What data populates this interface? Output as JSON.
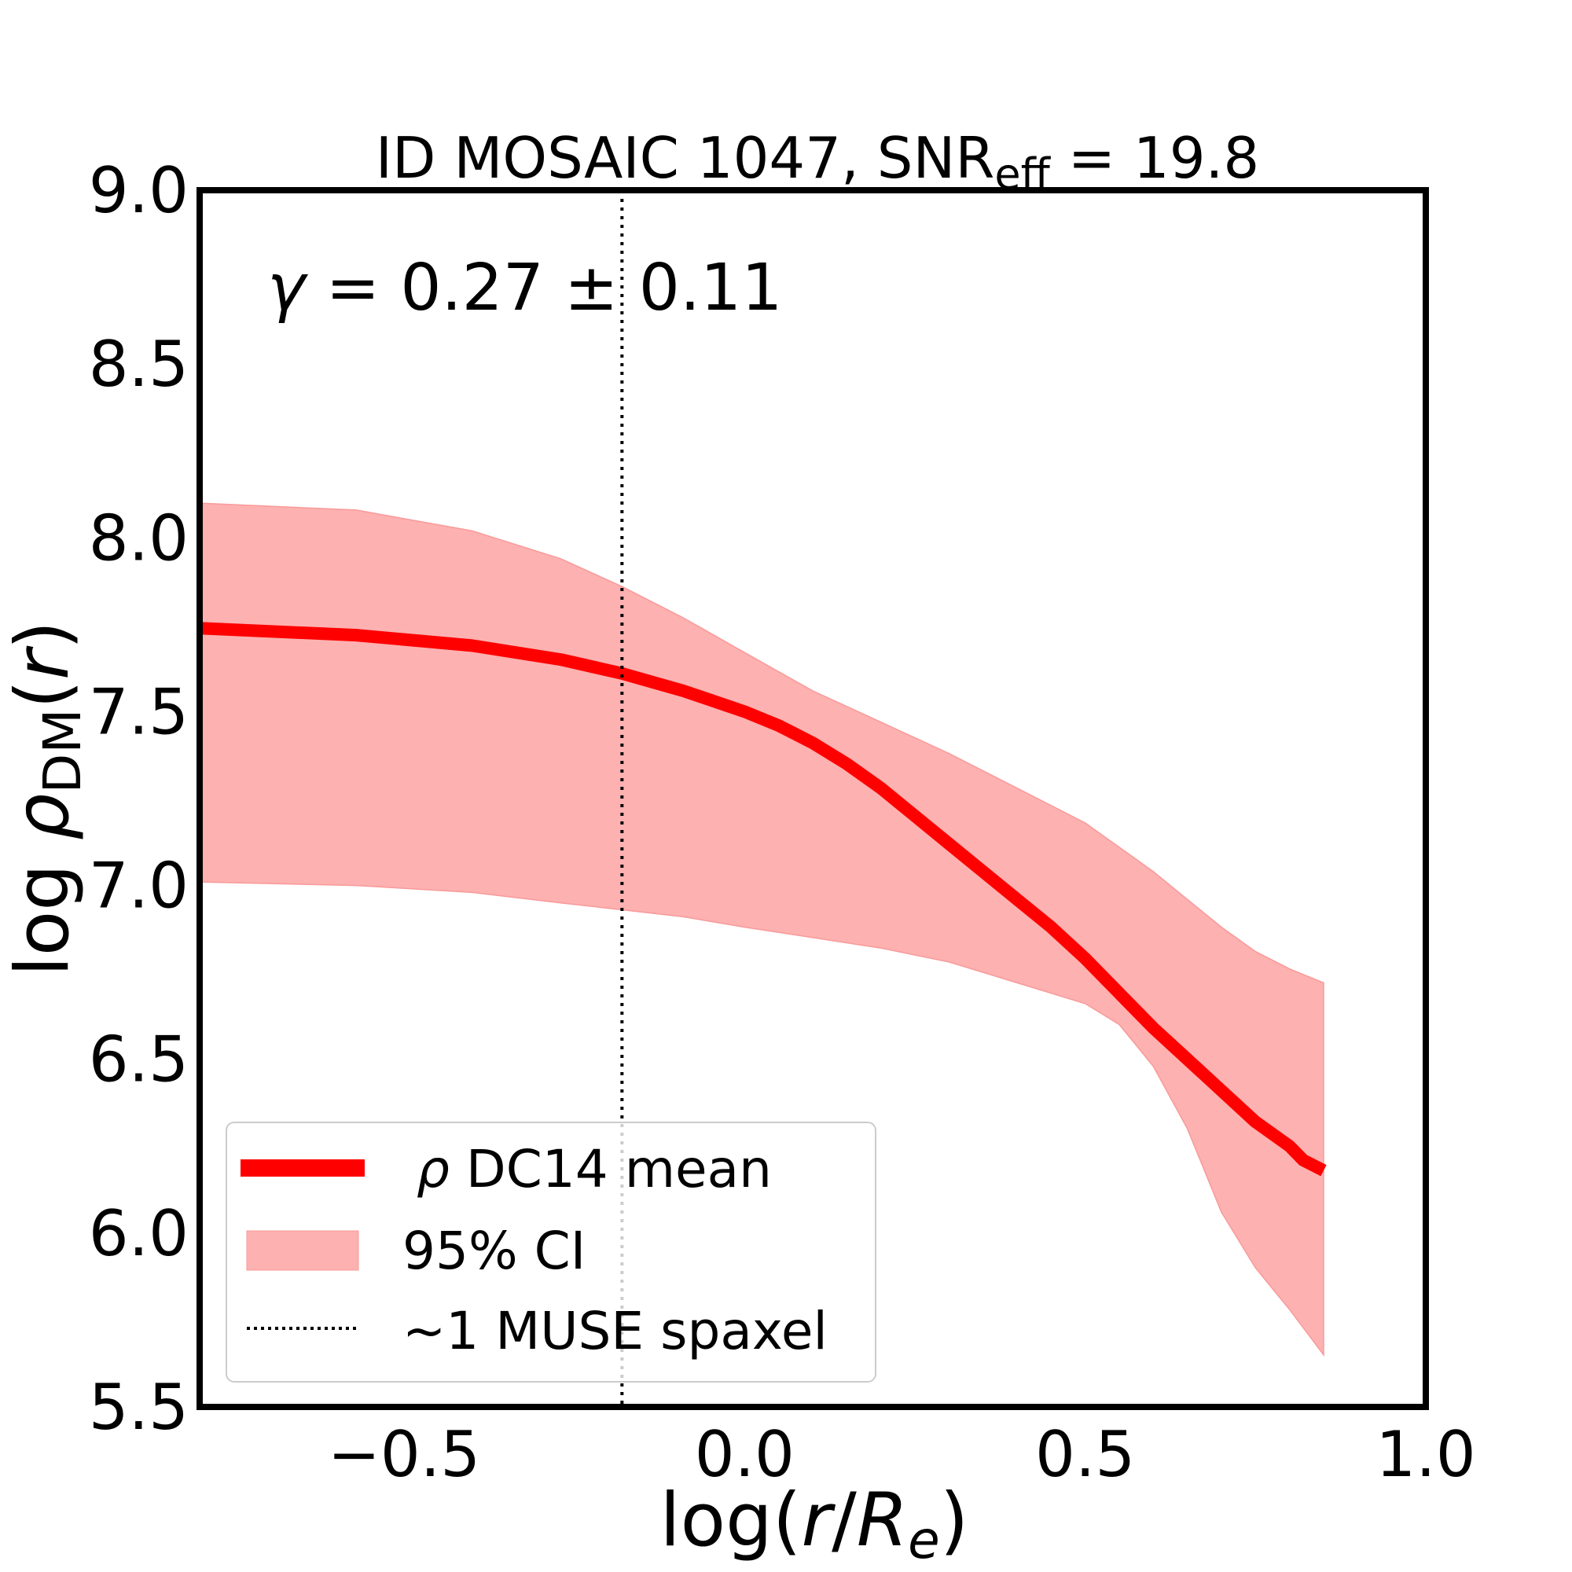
{
  "chart_data": {
    "type": "line",
    "title": {
      "prefix": "ID MOSAIC 1047, SNR",
      "subscript": "eff",
      "suffix": " = 19.8"
    },
    "xlabel": {
      "prefix": "log(",
      "r": "r",
      "slash": "/",
      "R": "R",
      "sub": "e",
      "suffix": ")"
    },
    "ylabel": {
      "log": "log",
      "rho": "ρ",
      "sub": "DM",
      "open": "(",
      "r": "r",
      "close": ")"
    },
    "xlim": [
      -0.8,
      1.0
    ],
    "ylim": [
      5.5,
      9.0
    ],
    "xticks": [
      -0.5,
      0.0,
      0.5,
      1.0
    ],
    "xtick_labels": [
      "−0.5",
      "0.0",
      "0.5",
      "1.0"
    ],
    "yticks": [
      5.5,
      6.0,
      6.5,
      7.0,
      7.5,
      8.0,
      8.5,
      9.0
    ],
    "ytick_labels": [
      "5.5",
      "6.0",
      "6.5",
      "7.0",
      "7.5",
      "8.0",
      "8.5",
      "9.0"
    ],
    "grid": false,
    "annotation": {
      "gamma": "γ",
      "text": " = 0.27 ± 0.11"
    },
    "vline": {
      "x": -0.18,
      "style": "dotted",
      "color": "#000000"
    },
    "series": [
      {
        "name": "ρ DC14 mean",
        "kind": "line",
        "color": "#ff0000",
        "x": [
          -0.8,
          -0.57,
          -0.4,
          -0.27,
          -0.18,
          -0.09,
          0.0,
          0.05,
          0.1,
          0.15,
          0.2,
          0.25,
          0.3,
          0.35,
          0.4,
          0.45,
          0.5,
          0.55,
          0.6,
          0.65,
          0.7,
          0.75,
          0.8,
          0.82,
          0.85
        ],
        "y": [
          7.74,
          7.72,
          7.69,
          7.65,
          7.61,
          7.56,
          7.5,
          7.46,
          7.41,
          7.35,
          7.28,
          7.2,
          7.12,
          7.04,
          6.96,
          6.88,
          6.79,
          6.69,
          6.59,
          6.5,
          6.41,
          6.32,
          6.25,
          6.21,
          6.18
        ]
      },
      {
        "name": "95% CI",
        "kind": "band",
        "color": "#fdb1b1",
        "x": [
          -0.8,
          -0.57,
          -0.4,
          -0.27,
          -0.18,
          -0.09,
          0.0,
          0.1,
          0.2,
          0.3,
          0.4,
          0.5,
          0.55,
          0.6,
          0.65,
          0.7,
          0.75,
          0.8,
          0.85
        ],
        "upper": [
          8.1,
          8.08,
          8.02,
          7.94,
          7.86,
          7.77,
          7.67,
          7.56,
          7.47,
          7.38,
          7.28,
          7.18,
          7.11,
          7.04,
          6.96,
          6.88,
          6.81,
          6.76,
          6.72
        ],
        "lower": [
          7.01,
          7.0,
          6.98,
          6.95,
          6.93,
          6.91,
          6.88,
          6.85,
          6.82,
          6.78,
          6.72,
          6.66,
          6.6,
          6.48,
          6.3,
          6.06,
          5.9,
          5.78,
          5.65
        ]
      },
      {
        "name": "~1 MUSE spaxel",
        "kind": "vline",
        "color": "#000000"
      }
    ],
    "legend": {
      "placement": "lower-left",
      "entries": [
        {
          "rho": "ρ",
          "text": " DC14 mean"
        },
        {
          "text": "95% CI"
        },
        {
          "text": "~1 MUSE spaxel"
        }
      ]
    }
  }
}
